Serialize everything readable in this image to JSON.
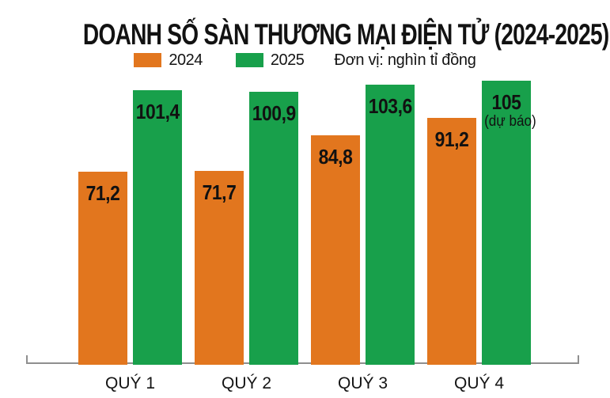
{
  "title": "DOANH SỐ SÀN THƯƠNG MẠI ĐIỆN TỬ (2024-2025)",
  "legend": {
    "items": [
      {
        "label": "2024",
        "color": "#E2761E"
      },
      {
        "label": "2025",
        "color": "#18A04B"
      }
    ],
    "unit_note": "Đơn vị: nghìn tỉ đồng"
  },
  "chart_data": {
    "type": "bar",
    "title": "DOANH SỐ SÀN THƯƠNG MẠI ĐIỆN TỬ (2024-2025)",
    "unit": "nghìn tỉ đồng",
    "categories": [
      "QUÝ 1",
      "QUÝ 2",
      "QUÝ 3",
      "QUÝ 4"
    ],
    "series": [
      {
        "name": "2024",
        "color": "#E2761E",
        "values": [
          71.2,
          71.7,
          84.8,
          91.2
        ],
        "value_labels": [
          "71,2",
          "71,7",
          "84,8",
          "91,2"
        ],
        "annotations": [
          null,
          null,
          null,
          null
        ]
      },
      {
        "name": "2025",
        "color": "#18A04B",
        "values": [
          101.4,
          100.9,
          103.6,
          105
        ],
        "value_labels": [
          "101,4",
          "100,9",
          "103,6",
          "105"
        ],
        "annotations": [
          null,
          null,
          null,
          "(dự báo)"
        ]
      }
    ],
    "ylim": [
      0,
      110
    ],
    "grid": false,
    "legend_position": "top",
    "axis_color": "#8F8F8F",
    "label_color": "#111111"
  }
}
